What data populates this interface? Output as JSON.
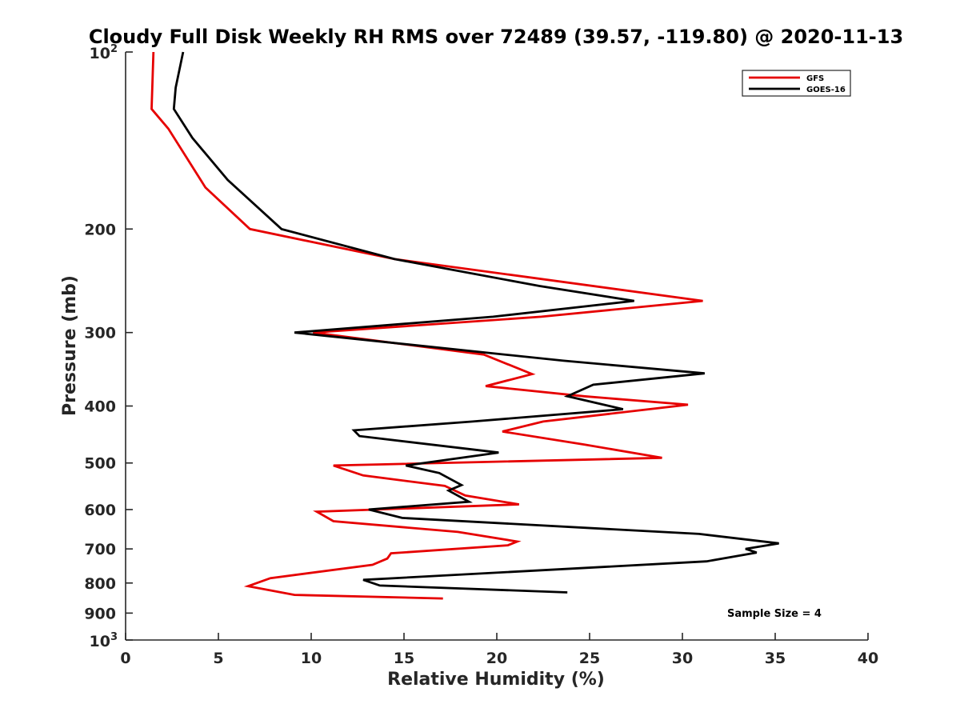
{
  "chart_data": {
    "type": "line",
    "title": "Cloudy Full Disk Weekly RH RMS over 72489 (39.57, -119.80) @ 2020-11-13",
    "xlabel": "Relative Humidity (%)",
    "ylabel": "Pressure (mb)",
    "xlim": [
      0,
      40
    ],
    "ylim": [
      100,
      1000
    ],
    "yscale": "log",
    "y_reversed": true,
    "x_ticks": [
      "0",
      "5",
      "10",
      "15",
      "20",
      "25",
      "30",
      "35",
      "40"
    ],
    "y_ticks": [
      {
        "value": 100,
        "base": "10",
        "exp": "2"
      },
      {
        "value": 200,
        "label": "200"
      },
      {
        "value": 300,
        "label": "300"
      },
      {
        "value": 400,
        "label": "400"
      },
      {
        "value": 500,
        "label": "500"
      },
      {
        "value": 600,
        "label": "600"
      },
      {
        "value": 700,
        "label": "700"
      },
      {
        "value": 800,
        "label": "800"
      },
      {
        "value": 900,
        "label": "900"
      },
      {
        "value": 1000,
        "base": "10",
        "exp": "3"
      }
    ],
    "grid": false,
    "legend_position": "top-right",
    "annotation": "Sample Size = 4",
    "series": [
      {
        "name": "GFS",
        "color": "#e60000",
        "points": [
          [
            1.5,
            100
          ],
          [
            1.4,
            125
          ],
          [
            2.3,
            135
          ],
          [
            4.3,
            170
          ],
          [
            6.7,
            200
          ],
          [
            14.5,
            225
          ],
          [
            31.1,
            265
          ],
          [
            22.4,
            282
          ],
          [
            10.1,
            300
          ],
          [
            19.3,
            327
          ],
          [
            21.9,
            353
          ],
          [
            19.4,
            370
          ],
          [
            24.7,
            385
          ],
          [
            30.3,
            398
          ],
          [
            22.5,
            425
          ],
          [
            20.3,
            442
          ],
          [
            24.7,
            465
          ],
          [
            28.9,
            490
          ],
          [
            11.2,
            505
          ],
          [
            12.8,
            525
          ],
          [
            17.2,
            547
          ],
          [
            18.3,
            568
          ],
          [
            21.2,
            588
          ],
          [
            10.3,
            605
          ],
          [
            11.2,
            628
          ],
          [
            17.9,
            655
          ],
          [
            21.1,
            680
          ],
          [
            20.6,
            690
          ],
          [
            14.3,
            712
          ],
          [
            14.1,
            727
          ],
          [
            13.3,
            745
          ],
          [
            7.8,
            785
          ],
          [
            6.6,
            810
          ],
          [
            9.1,
            838
          ],
          [
            17.1,
            850
          ]
        ]
      },
      {
        "name": "GOES-16",
        "color": "#000000",
        "points": [
          [
            3.1,
            100
          ],
          [
            2.7,
            115
          ],
          [
            2.6,
            125
          ],
          [
            3.6,
            140
          ],
          [
            5.5,
            165
          ],
          [
            8.4,
            200
          ],
          [
            14.5,
            225
          ],
          [
            22.3,
            250
          ],
          [
            27.4,
            265
          ],
          [
            19.8,
            282
          ],
          [
            9.1,
            300
          ],
          [
            23.6,
            335
          ],
          [
            31.2,
            352
          ],
          [
            25.2,
            368
          ],
          [
            23.8,
            385
          ],
          [
            26.8,
            405
          ],
          [
            18.7,
            425
          ],
          [
            12.3,
            440
          ],
          [
            12.6,
            450
          ],
          [
            20.1,
            480
          ],
          [
            15.1,
            505
          ],
          [
            16.9,
            520
          ],
          [
            18.1,
            545
          ],
          [
            17.4,
            557
          ],
          [
            18.5,
            582
          ],
          [
            13.1,
            600
          ],
          [
            14.9,
            620
          ],
          [
            30.9,
            660
          ],
          [
            35.2,
            685
          ],
          [
            33.4,
            700
          ],
          [
            34.0,
            710
          ],
          [
            31.3,
            735
          ],
          [
            12.8,
            790
          ],
          [
            13.7,
            808
          ],
          [
            23.8,
            830
          ]
        ]
      }
    ]
  }
}
